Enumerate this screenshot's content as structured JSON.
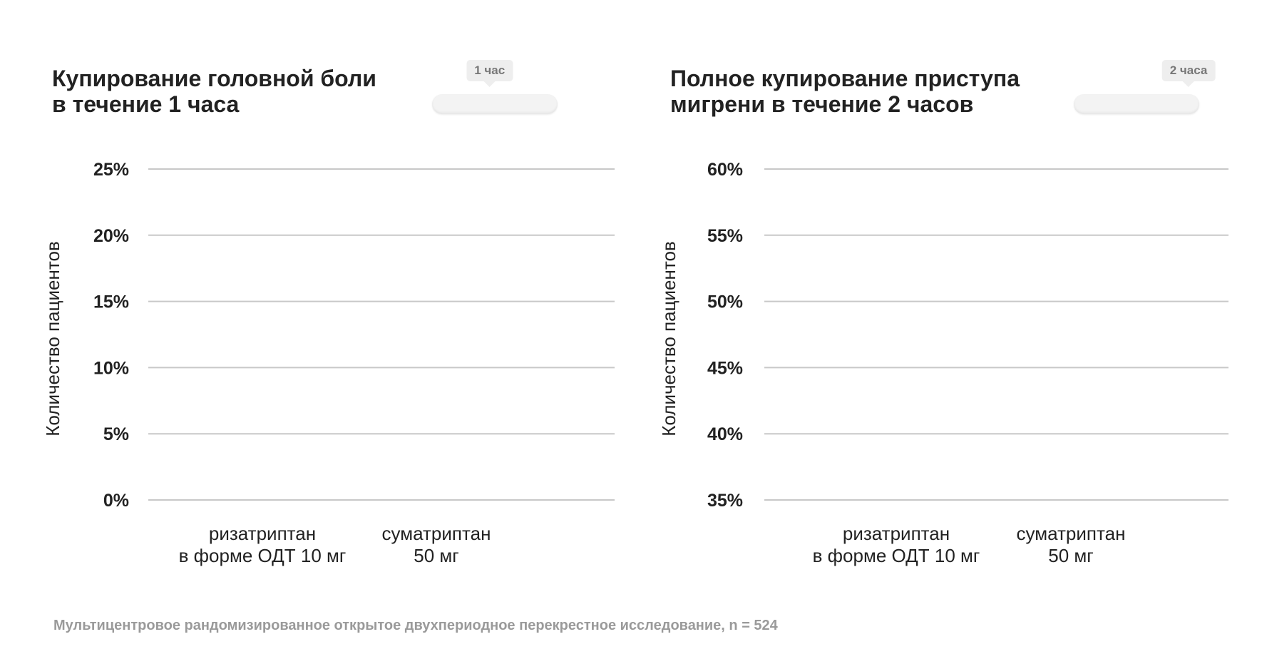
{
  "chart_data": [
    {
      "type": "bar",
      "title": "Купирование головной боли\nв течение 1 часа",
      "ylabel": "Количество пациентов",
      "ylim": [
        0,
        25
      ],
      "yticks": [
        "0%",
        "5%",
        "10%",
        "15%",
        "20%",
        "25%"
      ],
      "categories": [
        [
          "ризатриптан",
          "в форме ОДТ 10 мг"
        ],
        [
          "суматриптан",
          "50 мг"
        ]
      ],
      "grid": true,
      "slider": {
        "label": "1 час",
        "value": 0.45
      }
    },
    {
      "type": "bar",
      "title": "Полное купирование приступа\nмигрени в течение 2 часов",
      "ylabel": "Количество пациентов",
      "ylim": [
        35,
        60
      ],
      "yticks": [
        "35%",
        "40%",
        "45%",
        "50%",
        "55%",
        "60%"
      ],
      "categories": [
        [
          "ризатриптан",
          "в форме ОДТ 10 мг"
        ],
        [
          "суматриптан",
          "50 мг"
        ]
      ],
      "grid": true,
      "slider": {
        "label": "2 часа",
        "value": 1.0
      }
    }
  ],
  "footnote": "Мультицентровое рандомизированное открытое двухпериодное перекрестное исследование, n = 524"
}
